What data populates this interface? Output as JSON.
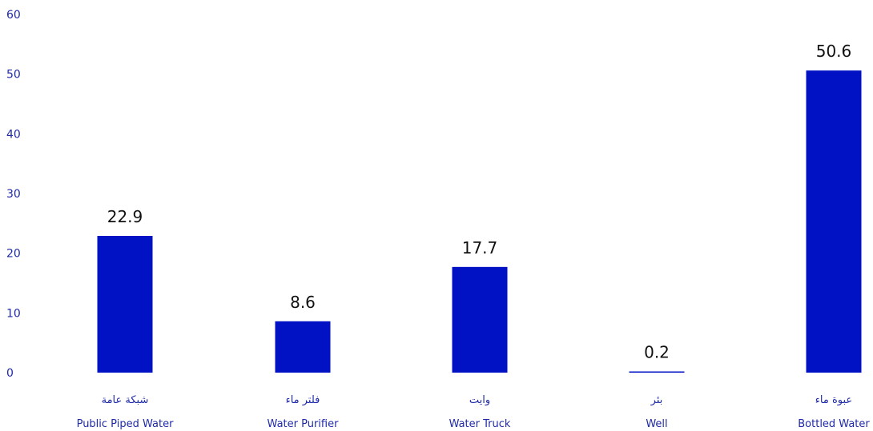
{
  "chart_data": {
    "type": "bar",
    "categories": [
      {
        "ar": "شبكة عامة",
        "en": "Public Piped Water"
      },
      {
        "ar": "فلتر ماء",
        "en": "Water Purifier"
      },
      {
        "ar": "وايت",
        "en": "Water Truck"
      },
      {
        "ar": "بئر",
        "en": "Well"
      },
      {
        "ar": "عبوة ماء",
        "en": "Bottled Water"
      }
    ],
    "values": [
      22.9,
      8.6,
      17.7,
      0.2,
      50.6
    ],
    "value_labels": [
      "22.9",
      "8.6",
      "17.7",
      "0.2",
      "50.6"
    ],
    "y_ticks": [
      "0",
      "10",
      "20",
      "30",
      "40",
      "50",
      "60"
    ],
    "ylim": [
      0,
      60
    ],
    "grid": false,
    "colors": {
      "bar": "#0012c4",
      "tick_text": "#1f2aa8",
      "value_text": "#111111"
    }
  }
}
